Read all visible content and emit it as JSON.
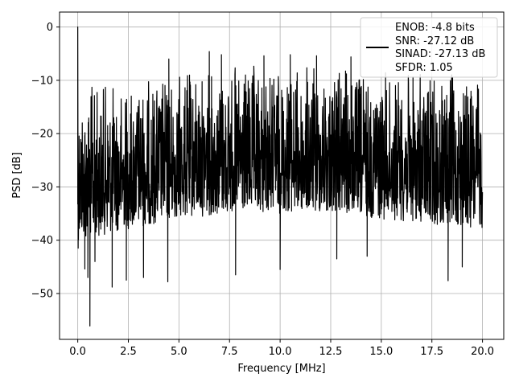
{
  "chart_data": {
    "type": "line",
    "xlabel": "Frequency [MHz]",
    "ylabel": "PSD [dB]",
    "xlim": [
      -0.9,
      21.05
    ],
    "ylim": [
      -58.6,
      2.8
    ],
    "xticks": [
      0.0,
      2.5,
      5.0,
      7.5,
      10.0,
      12.5,
      15.0,
      17.5,
      20.0
    ],
    "xtick_labels": [
      "0.0",
      "2.5",
      "5.0",
      "7.5",
      "10.0",
      "12.5",
      "15.0",
      "17.5",
      "20.0"
    ],
    "yticks": [
      0,
      -10,
      -20,
      -30,
      -40,
      -50
    ],
    "ytick_labels": [
      "0",
      "−10",
      "−20",
      "−30",
      "−40",
      "−50"
    ],
    "grid": true,
    "legend": {
      "placement": "top-right",
      "entries": [
        "ENOB: -4.8 bits",
        "SNR: -27.12 dB",
        "SINAD: -27.13 dB",
        "SFDR: 1.05"
      ]
    },
    "series": [
      {
        "color": "#000000",
        "style": "dense noise-like spectrum",
        "x_range": [
          0.0,
          20.0
        ],
        "envelope": {
          "x": [
            0.0,
            2.5,
            5.0,
            7.5,
            10.0,
            12.5,
            15.0,
            17.5,
            20.0
          ],
          "upper": [
            -10,
            -10,
            -8,
            -7,
            -7,
            -7,
            -8,
            -8,
            -9
          ],
          "lower": [
            -40,
            -38,
            -36,
            -35,
            -35,
            -35,
            -36,
            -37,
            -38
          ]
        },
        "peaks": [
          {
            "x": 0.0,
            "y": 0
          },
          {
            "x": 0.02,
            "y": -41.5
          },
          {
            "x": 0.35,
            "y": -45.4
          },
          {
            "x": 0.5,
            "y": -47
          },
          {
            "x": 0.6,
            "y": -56.1
          },
          {
            "x": 0.85,
            "y": -44
          },
          {
            "x": 1.7,
            "y": -48.8
          },
          {
            "x": 2.4,
            "y": -47.5
          },
          {
            "x": 3.25,
            "y": -47
          },
          {
            "x": 4.45,
            "y": -47.8
          },
          {
            "x": 7.8,
            "y": -46.5
          },
          {
            "x": 10.0,
            "y": -45.5
          },
          {
            "x": 12.8,
            "y": -43.5
          },
          {
            "x": 14.3,
            "y": -43
          },
          {
            "x": 18.3,
            "y": -47.6
          },
          {
            "x": 19.0,
            "y": -45
          },
          {
            "x": 6.5,
            "y": -4.6
          },
          {
            "x": 4.5,
            "y": -6
          },
          {
            "x": 7.1,
            "y": -5.2
          },
          {
            "x": 9.2,
            "y": -5.4
          },
          {
            "x": 10.5,
            "y": -5.2
          },
          {
            "x": 11.8,
            "y": -5.4
          },
          {
            "x": 13.5,
            "y": -5.6
          }
        ]
      }
    ]
  }
}
